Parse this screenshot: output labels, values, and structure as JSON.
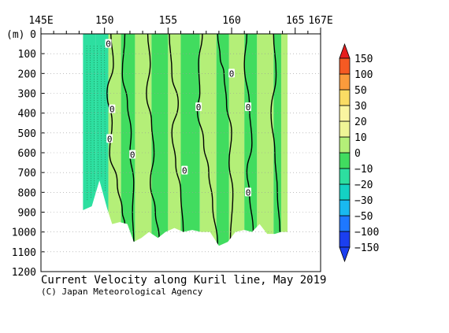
{
  "chart_data": {
    "type": "heatmap",
    "title": "Current Velocity along Kuril line, May 2019",
    "credit": "(C) Japan Meteorological Agency",
    "y_unit_label": "(m)",
    "x_ticks": [
      {
        "value": 145,
        "label": "145E"
      },
      {
        "value": 150,
        "label": "150"
      },
      {
        "value": 155,
        "label": "155"
      },
      {
        "value": 160,
        "label": "160"
      },
      {
        "value": 165,
        "label": "165"
      },
      {
        "value": 167,
        "label": "167E"
      }
    ],
    "xlim": [
      145,
      167
    ],
    "ylim": [
      0,
      1200
    ],
    "y_ticks": [
      0,
      100,
      200,
      300,
      400,
      500,
      600,
      700,
      800,
      900,
      1000,
      1100,
      1200
    ],
    "y_tick_labels": [
      "0",
      "100",
      "200",
      "300",
      "400",
      "500",
      "600",
      "700",
      "800",
      "900",
      "1000",
      "1100",
      "1200"
    ],
    "colorbar": {
      "levels": [
        -150,
        -100,
        -50,
        -30,
        -20,
        -10,
        0,
        10,
        20,
        30,
        50,
        100,
        150
      ],
      "labels": [
        "-150",
        "-100",
        "-50",
        "-30",
        "-20",
        "-10",
        "0",
        "10",
        "20",
        "30",
        "50",
        "100",
        "150"
      ],
      "colors": [
        "#1b3ff0",
        "#1e78ff",
        "#19b9f0",
        "#14d2c3",
        "#2ddfa0",
        "#41dc5f",
        "#b4ef78",
        "#eff596",
        "#faf5a0",
        "#fadc64",
        "#fa9b3c",
        "#f55a23",
        "#e61e1e"
      ]
    },
    "section_bottom": [
      {
        "lon": 148.3,
        "depth": 890
      },
      {
        "lon": 149.0,
        "depth": 870
      },
      {
        "lon": 149.6,
        "depth": 740
      },
      {
        "lon": 150.2,
        "depth": 880
      },
      {
        "lon": 150.6,
        "depth": 960
      },
      {
        "lon": 151.2,
        "depth": 950
      },
      {
        "lon": 151.8,
        "depth": 960
      },
      {
        "lon": 152.3,
        "depth": 1050
      },
      {
        "lon": 152.9,
        "depth": 1030
      },
      {
        "lon": 153.5,
        "depth": 1000
      },
      {
        "lon": 154.2,
        "depth": 1030
      },
      {
        "lon": 154.8,
        "depth": 1000
      },
      {
        "lon": 155.5,
        "depth": 980
      },
      {
        "lon": 156.2,
        "depth": 1000
      },
      {
        "lon": 156.9,
        "depth": 990
      },
      {
        "lon": 157.6,
        "depth": 1000
      },
      {
        "lon": 158.3,
        "depth": 1000
      },
      {
        "lon": 159.0,
        "depth": 1070
      },
      {
        "lon": 159.7,
        "depth": 1050
      },
      {
        "lon": 160.3,
        "depth": 1000
      },
      {
        "lon": 161.0,
        "depth": 990
      },
      {
        "lon": 161.6,
        "depth": 1000
      },
      {
        "lon": 162.2,
        "depth": 960
      },
      {
        "lon": 162.8,
        "depth": 1010
      },
      {
        "lon": 163.4,
        "depth": 1010
      },
      {
        "lon": 163.9,
        "depth": 1000
      },
      {
        "lon": 164.4,
        "depth": 1000
      }
    ],
    "bands": [
      {
        "from": 148.3,
        "to": 149.3,
        "value": -15
      },
      {
        "from": 149.3,
        "to": 150.3,
        "value": -12
      },
      {
        "from": 150.3,
        "to": 151.3,
        "value": 5
      },
      {
        "from": 151.3,
        "to": 152.4,
        "value": -5
      },
      {
        "from": 152.4,
        "to": 153.7,
        "value": 5
      },
      {
        "from": 153.7,
        "to": 155.0,
        "value": -5
      },
      {
        "from": 155.0,
        "to": 156.0,
        "value": 5
      },
      {
        "from": 156.0,
        "to": 157.5,
        "value": -5
      },
      {
        "from": 157.5,
        "to": 158.8,
        "value": 5
      },
      {
        "from": 158.8,
        "to": 159.8,
        "value": -5
      },
      {
        "from": 159.8,
        "to": 161.0,
        "value": 5
      },
      {
        "from": 161.0,
        "to": 162.0,
        "value": -5
      },
      {
        "from": 162.0,
        "to": 163.3,
        "value": 5
      },
      {
        "from": 163.3,
        "to": 163.9,
        "value": -5
      },
      {
        "from": 163.9,
        "to": 164.4,
        "value": 5
      }
    ],
    "contours_zero": [
      [
        [
          150.5,
          0
        ],
        [
          150.7,
          150
        ],
        [
          150.2,
          300
        ],
        [
          150.6,
          450
        ],
        [
          150.4,
          600
        ],
        [
          151.0,
          750
        ],
        [
          151.4,
          900
        ],
        [
          151.6,
          960
        ]
      ],
      [
        [
          151.6,
          0
        ],
        [
          151.4,
          200
        ],
        [
          151.8,
          350
        ],
        [
          152.1,
          500
        ],
        [
          152.0,
          600
        ],
        [
          152.3,
          750
        ],
        [
          152.2,
          900
        ],
        [
          152.3,
          1050
        ]
      ],
      [
        [
          153.4,
          0
        ],
        [
          153.6,
          150
        ],
        [
          153.3,
          300
        ],
        [
          153.7,
          450
        ],
        [
          153.9,
          600
        ],
        [
          153.6,
          750
        ],
        [
          154.0,
          900
        ],
        [
          154.3,
          1030
        ]
      ],
      [
        [
          155.1,
          0
        ],
        [
          155.3,
          200
        ],
        [
          155.8,
          350
        ],
        [
          155.3,
          500
        ],
        [
          155.6,
          650
        ],
        [
          156.0,
          800
        ],
        [
          156.2,
          1000
        ]
      ],
      [
        [
          157.7,
          0
        ],
        [
          157.4,
          150
        ],
        [
          157.5,
          300
        ],
        [
          157.3,
          380
        ],
        [
          157.8,
          550
        ],
        [
          158.2,
          700
        ],
        [
          158.5,
          850
        ],
        [
          158.9,
          1070
        ]
      ],
      [
        [
          158.9,
          0
        ],
        [
          159.1,
          120
        ],
        [
          159.4,
          200
        ],
        [
          159.6,
          350
        ],
        [
          160.0,
          500
        ],
        [
          159.8,
          650
        ],
        [
          160.1,
          800
        ],
        [
          159.9,
          1050
        ]
      ],
      [
        [
          161.2,
          0
        ],
        [
          161.0,
          150
        ],
        [
          161.4,
          370
        ],
        [
          161.6,
          550
        ],
        [
          161.2,
          700
        ],
        [
          161.4,
          800
        ],
        [
          161.7,
          1000
        ]
      ],
      [
        [
          163.3,
          0
        ],
        [
          163.5,
          200
        ],
        [
          163.1,
          400
        ],
        [
          163.4,
          600
        ],
        [
          163.6,
          800
        ],
        [
          163.8,
          1000
        ]
      ]
    ],
    "contour_labels": [
      {
        "lon": 150.3,
        "depth": 50,
        "text": "0"
      },
      {
        "lon": 150.6,
        "depth": 380,
        "text": "0"
      },
      {
        "lon": 150.4,
        "depth": 530,
        "text": "0"
      },
      {
        "lon": 152.2,
        "depth": 610,
        "text": "0"
      },
      {
        "lon": 157.4,
        "depth": 370,
        "text": "0"
      },
      {
        "lon": 160.0,
        "depth": 200,
        "text": "0"
      },
      {
        "lon": 161.3,
        "depth": 370,
        "text": "0"
      },
      {
        "lon": 156.3,
        "depth": 690,
        "text": "0"
      },
      {
        "lon": 161.3,
        "depth": 800,
        "text": "0"
      }
    ]
  }
}
